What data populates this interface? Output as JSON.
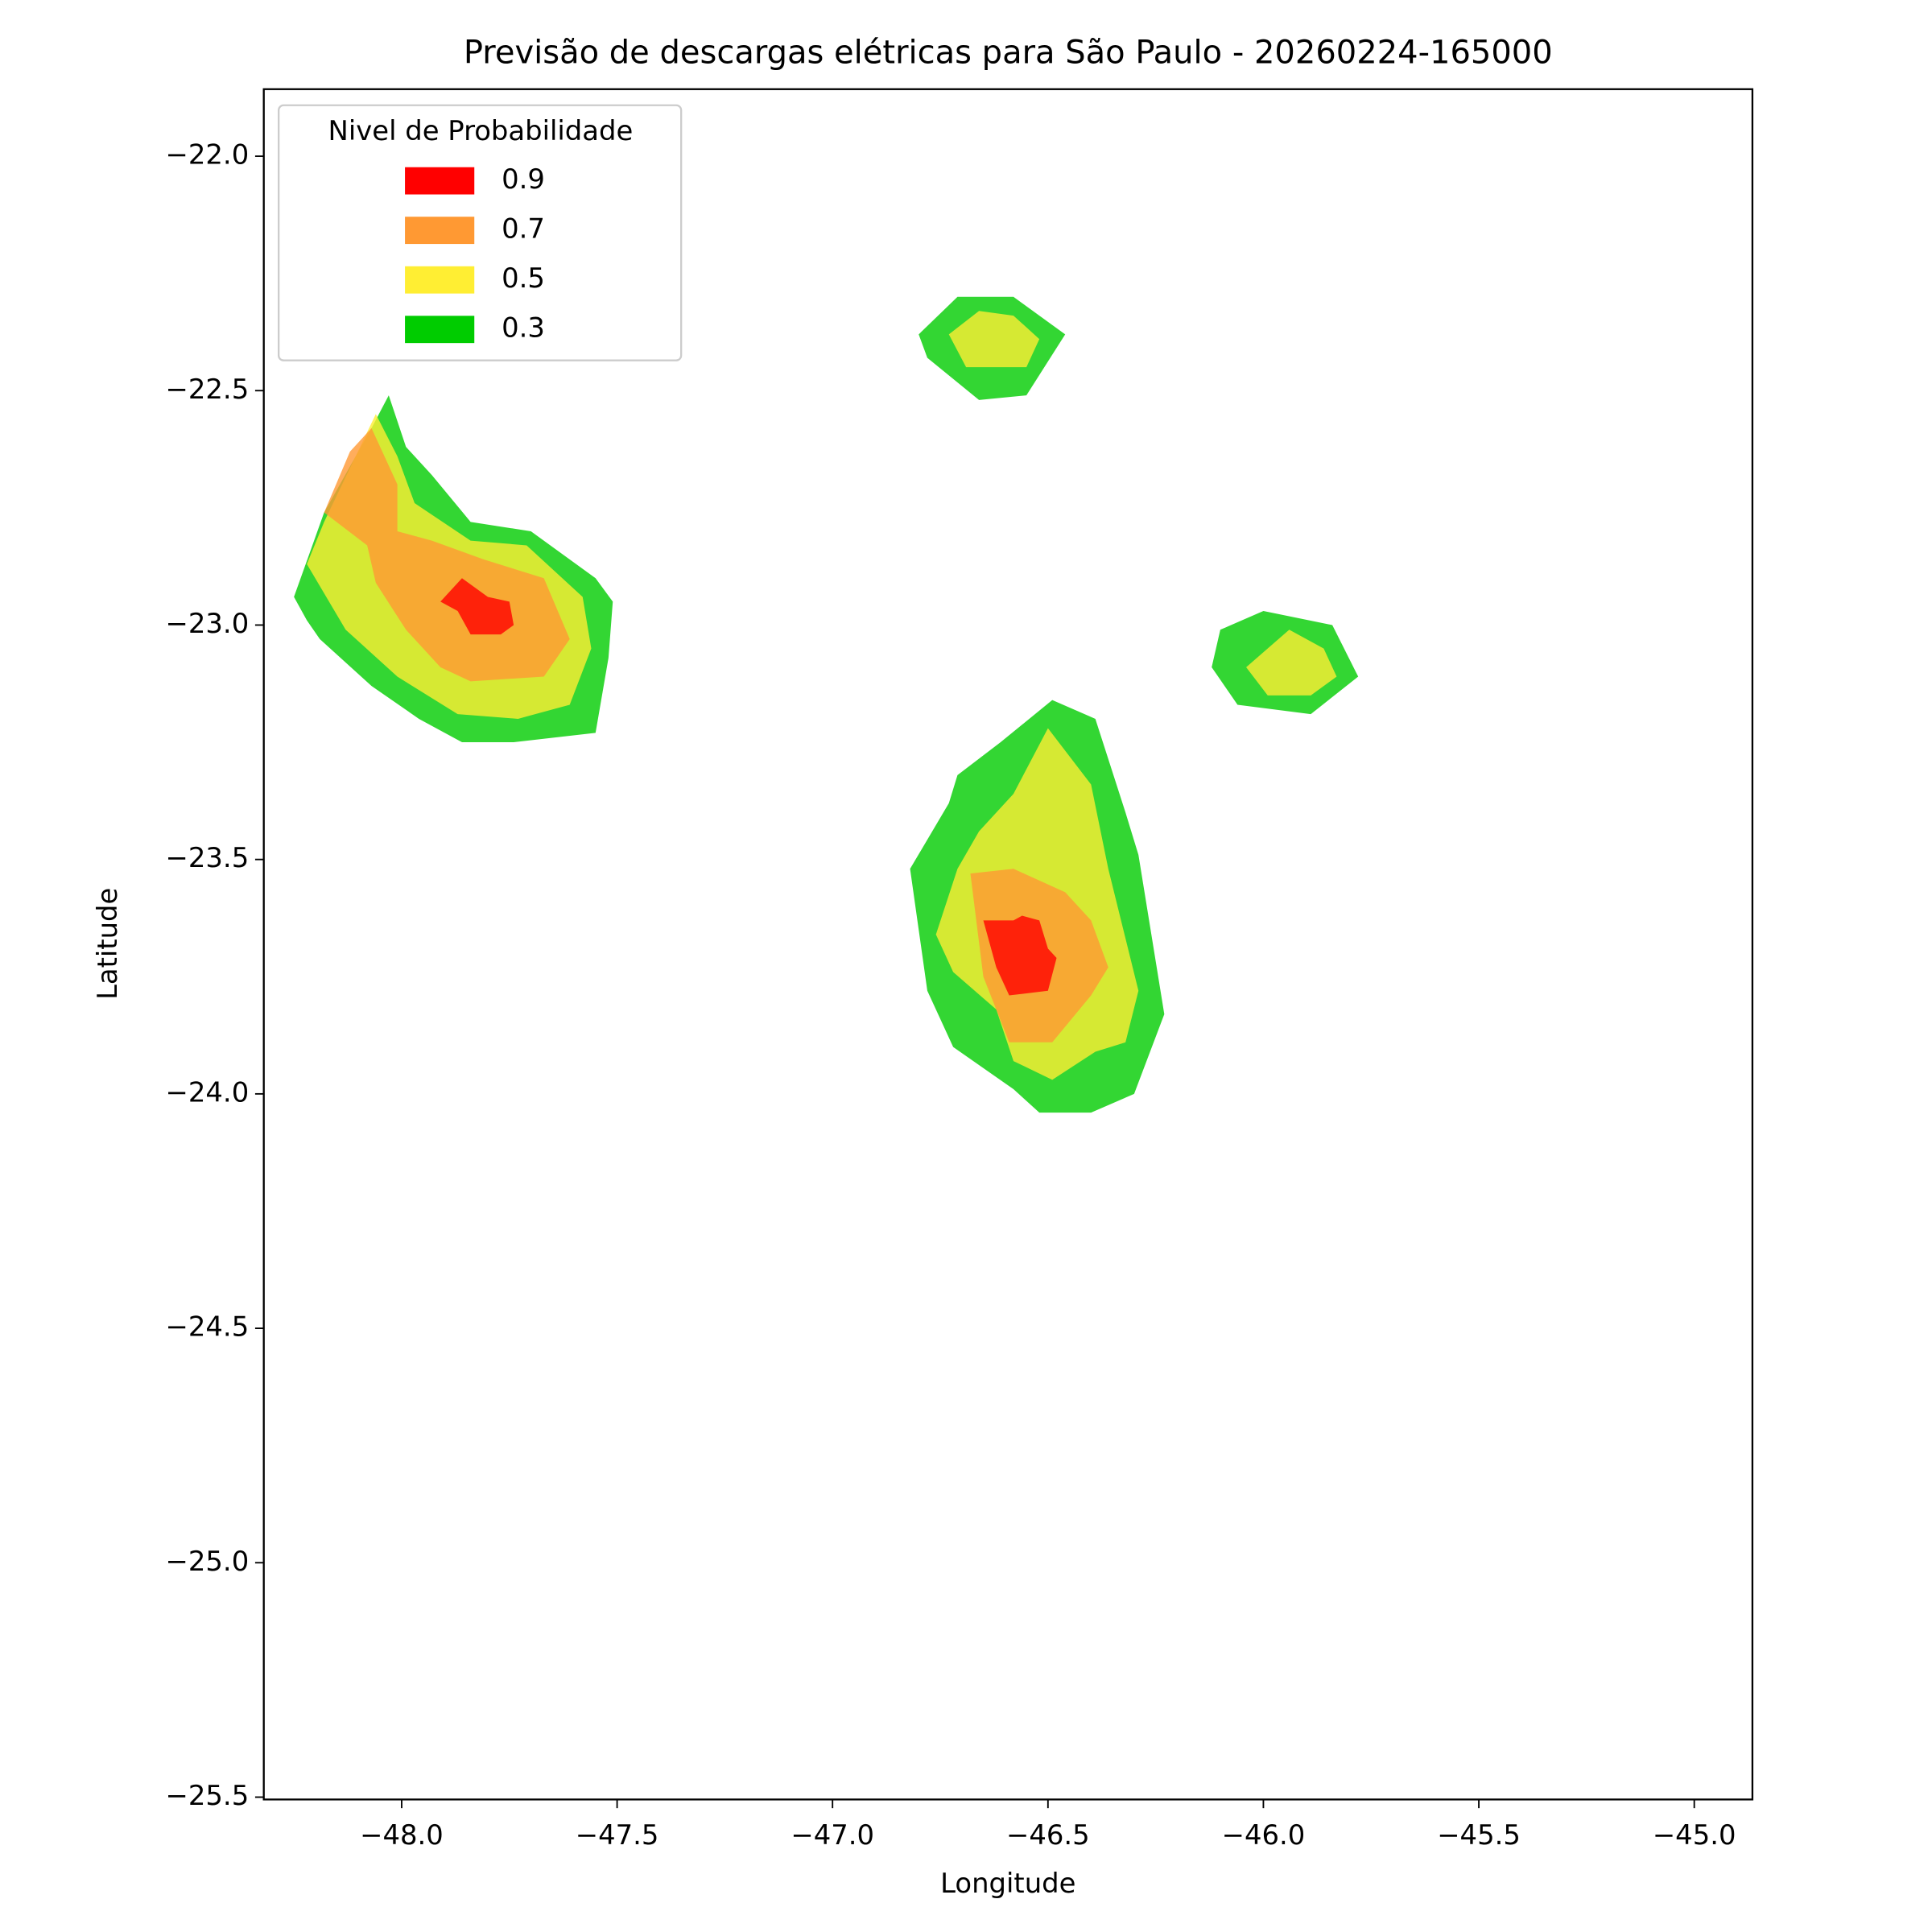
{
  "chart_data": {
    "type": "contourf",
    "title": "Previsão de descargas elétricas para São Paulo - 20260224-165000",
    "xlabel": "Longitude",
    "ylabel": "Latitude",
    "legend_title": "Nivel de Probabilidade",
    "legend": "upper left",
    "fill_opacity": 0.8,
    "xlim": [
      -48.32,
      -44.865
    ],
    "ylim": [
      -25.505,
      -21.857
    ],
    "xticks": [
      {
        "value": -48,
        "label": "−48.0"
      },
      {
        "value": -47.5,
        "label": "−47.5"
      },
      {
        "value": -47,
        "label": "−47.0"
      },
      {
        "value": -46.5,
        "label": "−46.5"
      },
      {
        "value": -46,
        "label": "−46.0"
      },
      {
        "value": -45.5,
        "label": "−45.5"
      },
      {
        "value": -45,
        "label": "−45.0"
      }
    ],
    "yticks": [
      {
        "value": -22,
        "label": "−22.0"
      },
      {
        "value": -22.5,
        "label": "−22.5"
      },
      {
        "value": -23,
        "label": "−23.0"
      },
      {
        "value": -23.5,
        "label": "−23.5"
      },
      {
        "value": -24,
        "label": "−24.0"
      },
      {
        "value": -24.5,
        "label": "−24.5"
      },
      {
        "value": -25,
        "label": "−25.0"
      },
      {
        "value": -25.5,
        "label": "−25.5"
      }
    ],
    "series": [
      {
        "name": "0.9",
        "color": "#ff0000",
        "polygons": [
          [
            [
              -47.91,
              -22.95
            ],
            [
              -47.86,
              -22.9
            ],
            [
              -47.8,
              -22.94
            ],
            [
              -47.75,
              -22.95
            ],
            [
              -47.74,
              -23.0
            ],
            [
              -47.77,
              -23.02
            ],
            [
              -47.84,
              -23.02
            ],
            [
              -47.87,
              -22.97
            ]
          ],
          [
            [
              -46.65,
              -23.63
            ],
            [
              -46.58,
              -23.63
            ],
            [
              -46.56,
              -23.62
            ],
            [
              -46.52,
              -23.63
            ],
            [
              -46.5,
              -23.69
            ],
            [
              -46.48,
              -23.71
            ],
            [
              -46.5,
              -23.78
            ],
            [
              -46.59,
              -23.79
            ],
            [
              -46.62,
              -23.73
            ]
          ]
        ]
      },
      {
        "name": "0.7",
        "color": "#ff9933",
        "polygons": [
          [
            [
              -48.07,
              -22.58
            ],
            [
              -48.01,
              -22.7
            ],
            [
              -48.01,
              -22.8
            ],
            [
              -47.93,
              -22.82
            ],
            [
              -47.81,
              -22.86
            ],
            [
              -47.67,
              -22.9
            ],
            [
              -47.61,
              -23.03
            ],
            [
              -47.67,
              -23.11
            ],
            [
              -47.84,
              -23.12
            ],
            [
              -47.91,
              -23.09
            ],
            [
              -47.99,
              -23.01
            ],
            [
              -48.06,
              -22.91
            ],
            [
              -48.08,
              -22.83
            ],
            [
              -48.18,
              -22.76
            ],
            [
              -48.12,
              -22.63
            ]
          ],
          [
            [
              -46.68,
              -23.53
            ],
            [
              -46.58,
              -23.52
            ],
            [
              -46.46,
              -23.57
            ],
            [
              -46.4,
              -23.63
            ],
            [
              -46.36,
              -23.73
            ],
            [
              -46.4,
              -23.79
            ],
            [
              -46.49,
              -23.89
            ],
            [
              -46.59,
              -23.89
            ],
            [
              -46.65,
              -23.75
            ]
          ]
        ]
      },
      {
        "name": "0.5",
        "color": "#ffee33",
        "polygons": [
          [
            [
              -48.06,
              -22.55
            ],
            [
              -48.01,
              -22.64
            ],
            [
              -47.97,
              -22.74
            ],
            [
              -47.84,
              -22.82
            ],
            [
              -47.71,
              -22.83
            ],
            [
              -47.58,
              -22.94
            ],
            [
              -47.56,
              -23.05
            ],
            [
              -47.61,
              -23.17
            ],
            [
              -47.73,
              -23.2
            ],
            [
              -47.87,
              -23.19
            ],
            [
              -48.01,
              -23.11
            ],
            [
              -48.13,
              -23.01
            ],
            [
              -48.22,
              -22.87
            ],
            [
              -48.18,
              -22.78
            ]
          ],
          [
            [
              -46.73,
              -22.38
            ],
            [
              -46.66,
              -22.33
            ],
            [
              -46.58,
              -22.34
            ],
            [
              -46.52,
              -22.39
            ],
            [
              -46.55,
              -22.45
            ],
            [
              -46.69,
              -22.45
            ]
          ],
          [
            [
              -46.04,
              -23.09
            ],
            [
              -45.94,
              -23.01
            ],
            [
              -45.86,
              -23.05
            ],
            [
              -45.83,
              -23.11
            ],
            [
              -45.89,
              -23.15
            ],
            [
              -45.99,
              -23.15
            ]
          ],
          [
            [
              -46.58,
              -23.36
            ],
            [
              -46.5,
              -23.22
            ],
            [
              -46.4,
              -23.34
            ],
            [
              -46.36,
              -23.52
            ],
            [
              -46.29,
              -23.78
            ],
            [
              -46.32,
              -23.89
            ],
            [
              -46.39,
              -23.91
            ],
            [
              -46.49,
              -23.97
            ],
            [
              -46.58,
              -23.93
            ],
            [
              -46.62,
              -23.82
            ],
            [
              -46.72,
              -23.74
            ],
            [
              -46.76,
              -23.66
            ],
            [
              -46.71,
              -23.52
            ],
            [
              -46.66,
              -23.44
            ]
          ]
        ]
      },
      {
        "name": "0.3",
        "color": "#00cc00",
        "polygons": [
          [
            [
              -48.03,
              -22.51
            ],
            [
              -47.99,
              -22.62
            ],
            [
              -47.93,
              -22.68
            ],
            [
              -47.84,
              -22.78
            ],
            [
              -47.7,
              -22.8
            ],
            [
              -47.55,
              -22.9
            ],
            [
              -47.51,
              -22.95
            ],
            [
              -47.52,
              -23.07
            ],
            [
              -47.55,
              -23.23
            ],
            [
              -47.74,
              -23.25
            ],
            [
              -47.86,
              -23.25
            ],
            [
              -47.96,
              -23.2
            ],
            [
              -48.07,
              -23.13
            ],
            [
              -48.19,
              -23.03
            ],
            [
              -48.22,
              -22.99
            ],
            [
              -48.25,
              -22.94
            ],
            [
              -48.18,
              -22.76
            ],
            [
              -48.07,
              -22.58
            ]
          ],
          [
            [
              -46.8,
              -22.38
            ],
            [
              -46.71,
              -22.3
            ],
            [
              -46.58,
              -22.3
            ],
            [
              -46.46,
              -22.38
            ],
            [
              -46.55,
              -22.51
            ],
            [
              -46.66,
              -22.52
            ],
            [
              -46.78,
              -22.43
            ]
          ],
          [
            [
              -46.1,
              -23.01
            ],
            [
              -46.0,
              -22.97
            ],
            [
              -45.84,
              -23.0
            ],
            [
              -45.78,
              -23.11
            ],
            [
              -45.89,
              -23.19
            ],
            [
              -46.06,
              -23.17
            ],
            [
              -46.12,
              -23.09
            ]
          ],
          [
            [
              -46.61,
              -23.25
            ],
            [
              -46.49,
              -23.16
            ],
            [
              -46.39,
              -23.2
            ],
            [
              -46.32,
              -23.4
            ],
            [
              -46.29,
              -23.49
            ],
            [
              -46.26,
              -23.66
            ],
            [
              -46.23,
              -23.83
            ],
            [
              -46.3,
              -24.0
            ],
            [
              -46.4,
              -24.04
            ],
            [
              -46.52,
              -24.04
            ],
            [
              -46.58,
              -23.99
            ],
            [
              -46.72,
              -23.9
            ],
            [
              -46.78,
              -23.78
            ],
            [
              -46.82,
              -23.52
            ],
            [
              -46.73,
              -23.38
            ],
            [
              -46.71,
              -23.32
            ]
          ]
        ]
      }
    ]
  }
}
